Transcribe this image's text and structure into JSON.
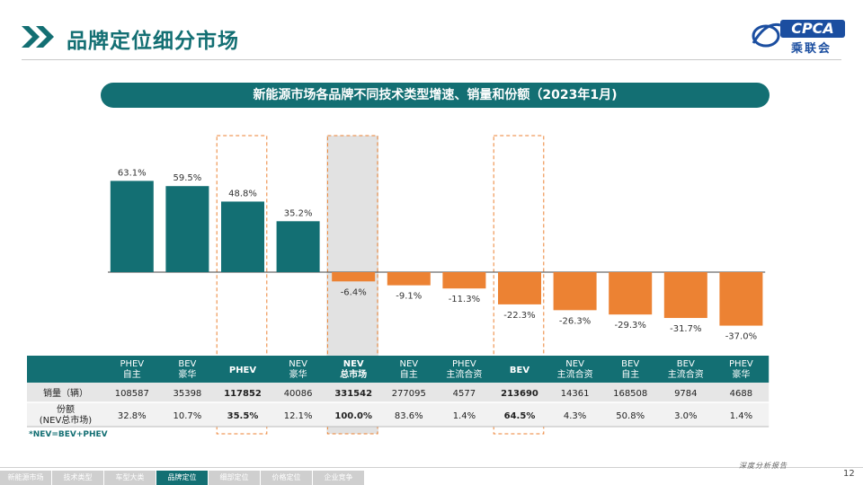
{
  "header": {
    "title": "品牌定位细分市场",
    "logo_text": "CPCA",
    "logo_cn": "乘联会"
  },
  "colors": {
    "accent": "#136f73",
    "negative": "#ec8233",
    "highlight_border": "#ec8233"
  },
  "chart_data": {
    "type": "bar",
    "title": "新能源市场各品牌不同技术类型增速、销量和份额（2023年1月)",
    "categories": [
      "PHEV 自主",
      "BEV 豪华",
      "PHEV",
      "NEV 豪华",
      "NEV 总市场",
      "NEV 自主",
      "PHEV 主流合资",
      "BEV",
      "NEV 主流合资",
      "BEV 自主",
      "BEV 主流合资",
      "PHEV 豪华"
    ],
    "values": [
      63.1,
      59.5,
      48.8,
      35.2,
      -6.4,
      -9.1,
      -11.3,
      -22.3,
      -26.3,
      -29.3,
      -31.7,
      -37.0
    ],
    "value_labels": [
      "63.1%",
      "59.5%",
      "48.8%",
      "35.2%",
      "-6.4%",
      "-9.1%",
      "-11.3%",
      "-22.3%",
      "-26.3%",
      "-29.3%",
      "-31.7%",
      "-37.0%"
    ],
    "xlabel": "",
    "ylabel": "",
    "grid": false,
    "legend": "none",
    "highlighted": [
      2,
      4,
      7
    ]
  },
  "table": {
    "columns": [
      {
        "line1": "PHEV",
        "line2": "自主"
      },
      {
        "line1": "BEV",
        "line2": "豪华"
      },
      {
        "line1": "PHEV",
        "line2": ""
      },
      {
        "line1": "NEV",
        "line2": "豪华"
      },
      {
        "line1": "NEV",
        "line2": "总市场"
      },
      {
        "line1": "NEV",
        "line2": "自主"
      },
      {
        "line1": "PHEV",
        "line2": "主流合资"
      },
      {
        "line1": "BEV",
        "line2": ""
      },
      {
        "line1": "NEV",
        "line2": "主流合资"
      },
      {
        "line1": "BEV",
        "line2": "自主"
      },
      {
        "line1": "BEV",
        "line2": "主流合资"
      },
      {
        "line1": "PHEV",
        "line2": "豪华"
      }
    ],
    "rows": [
      {
        "label": "销量（辆）",
        "values": [
          "108587",
          "35398",
          "117852",
          "40086",
          "331542",
          "277095",
          "4577",
          "213690",
          "14361",
          "168508",
          "9784",
          "4688"
        ]
      },
      {
        "label": "份额\n(NEV总市场)",
        "values": [
          "32.8%",
          "10.7%",
          "35.5%",
          "12.1%",
          "100.0%",
          "83.6%",
          "1.4%",
          "64.5%",
          "4.3%",
          "50.8%",
          "3.0%",
          "1.4%"
        ]
      }
    ],
    "bold_columns": [
      2,
      4,
      7
    ]
  },
  "note": "*NEV=BEV+PHEV",
  "footer": {
    "tabs": [
      "新能源市场",
      "技术类型",
      "车型大类",
      "品牌定位",
      "细部定位",
      "价格定位",
      "企业竞争"
    ],
    "active_index": 3,
    "report": "深度分析报告",
    "page": "12"
  }
}
